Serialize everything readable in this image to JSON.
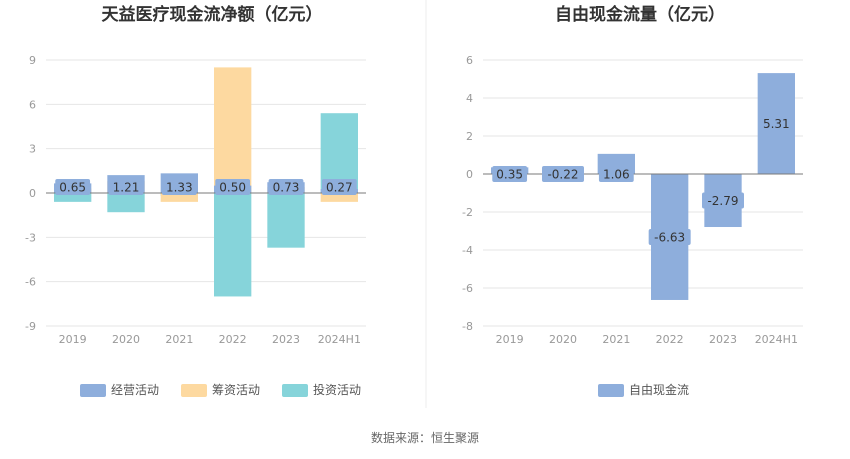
{
  "colors": {
    "operating": "#8eaedc",
    "financing": "#fdd9a0",
    "investing": "#86d4da",
    "fcf": "#8eaedc",
    "label_bg": "#8eaedc"
  },
  "chart_data": [
    {
      "type": "bar",
      "title": "天益医疗现金流净额（亿元）",
      "categories": [
        "2019",
        "2020",
        "2021",
        "2022",
        "2023",
        "2024H1"
      ],
      "ylim": [
        -9,
        9
      ],
      "yticks": [
        9,
        6,
        3,
        0,
        -3,
        -6,
        -9
      ],
      "legend_position": "bottom",
      "grid": true,
      "series": [
        {
          "name": "经营活动",
          "values": [
            0.65,
            1.21,
            1.33,
            0.5,
            0.73,
            0.27
          ],
          "labels": [
            "0.65",
            "1.21",
            "1.33",
            "0.50",
            "0.73",
            "0.27"
          ]
        },
        {
          "name": "筹资活动",
          "values": [
            0.3,
            0.8,
            -0.6,
            8.5,
            0.4,
            -0.6
          ]
        },
        {
          "name": "投资活动",
          "values": [
            -0.6,
            -1.3,
            -0.2,
            -7.0,
            -3.7,
            5.4
          ]
        }
      ]
    },
    {
      "type": "bar",
      "title": "自由现金流量（亿元）",
      "categories": [
        "2019",
        "2020",
        "2021",
        "2022",
        "2023",
        "2024H1"
      ],
      "ylim": [
        -8,
        6
      ],
      "yticks": [
        6,
        4,
        2,
        0,
        -2,
        -4,
        -6,
        -8
      ],
      "legend_position": "bottom",
      "grid": true,
      "series": [
        {
          "name": "自由现金流",
          "values": [
            0.35,
            -0.22,
            1.06,
            -6.63,
            -2.79,
            5.31
          ],
          "labels": [
            "0.35",
            "-0.22",
            "1.06",
            "-6.63",
            "-2.79",
            "5.31"
          ]
        }
      ]
    }
  ],
  "source": "数据来源：恒生聚源"
}
